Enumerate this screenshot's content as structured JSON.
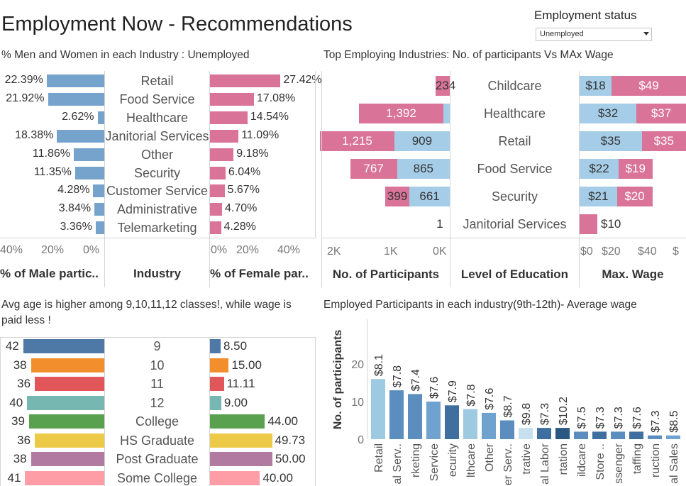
{
  "header": {
    "title": "Employment Now - Recommendations",
    "status_label": "Employment status",
    "status_value": "Unemployed"
  },
  "panel1": {
    "title": "%  Men and Women in each Industry : Unemployed",
    "axis_male": [
      "40%",
      "20%",
      "0%"
    ],
    "axis_female": [
      "0%",
      "20%",
      "40%"
    ],
    "footer_male": "% of Male partic..",
    "footer_industry": "Industry",
    "footer_female": "% of Female par..",
    "colors": {
      "male": "#75a3cc",
      "female": "#d97397"
    }
  },
  "panel2": {
    "title": "Top Employing Industries: No. of participants Vs MAx Wage",
    "axis_participants": [
      "2K",
      "1K",
      "0K"
    ],
    "axis_wage": [
      "$0",
      "$20",
      "$40",
      "$"
    ],
    "footer_participants": "No. of Participants",
    "footer_education": "Level of Education",
    "footer_wage": "Max. Wage"
  },
  "panel3": {
    "title": "Avg age is higher  among 9,10,11,12 classes!, while wage is paid less !"
  },
  "panel4": {
    "title": "Employed Participants in each industry(9th-12th)- Average wage",
    "y_label": "No. of participants",
    "y_ticks": [
      "20",
      "10",
      "0"
    ]
  },
  "chart_data": [
    {
      "type": "bar",
      "title": "%  Men and Women in each Industry : Unemployed",
      "categories": [
        "Retail",
        "Food Service",
        "Healthcare",
        "Janitorial Services",
        "Other",
        "Security",
        "Customer Service",
        "Administrative",
        "Telemarketing"
      ],
      "series": [
        {
          "name": "% of Male partic..",
          "values": [
            22.39,
            21.92,
            2.62,
            18.38,
            11.86,
            11.35,
            4.28,
            3.84,
            3.36
          ],
          "labels": [
            "22.39%",
            "21.92%",
            "2.62%",
            "18.38%",
            "11.86%",
            "11.35%",
            "4.28%",
            "3.84%",
            "3.36%"
          ]
        },
        {
          "name": "% of Female par..",
          "values": [
            27.42,
            17.08,
            14.54,
            11.09,
            9.18,
            6.04,
            5.67,
            4.7,
            4.28
          ],
          "labels": [
            "27.42%",
            "17.08%",
            "14.54%",
            "11.09%",
            "9.18%",
            "6.04%",
            "5.67%",
            "4.70%",
            "4.28%"
          ]
        }
      ],
      "xlim": [
        0,
        40
      ]
    },
    {
      "type": "bar",
      "title": "Top Employing Industries: No. of participants Vs MAx Wage",
      "categories": [
        "Childcare",
        "Healthcare",
        "Retail",
        "Food Service",
        "Security",
        "Janitorial Services"
      ],
      "series": [
        {
          "name": "No. of Participants (dark)",
          "values": [
            234,
            1392,
            1215,
            767,
            399,
            0
          ],
          "labels": [
            "234",
            "1,392",
            "1,215",
            "767",
            "399",
            ""
          ]
        },
        {
          "name": "No. of Participants (light)",
          "values": [
            0,
            100,
            909,
            865,
            661,
            1
          ],
          "labels": [
            "",
            "",
            "909",
            "865",
            "661",
            "1"
          ]
        },
        {
          "name": "Max. Wage (light)",
          "values": [
            18,
            32,
            35,
            22,
            21,
            0
          ],
          "labels": [
            "$18",
            "$32",
            "$35",
            "$22",
            "$21",
            ""
          ]
        },
        {
          "name": "Max. Wage (dark)",
          "values": [
            49,
            37,
            35,
            19,
            20,
            10
          ],
          "labels": [
            "$49",
            "$37",
            "$35",
            "$19",
            "$20",
            "$10"
          ]
        }
      ],
      "xlim_participants": [
        0,
        2000
      ],
      "xlim_wage": [
        0,
        60
      ]
    },
    {
      "type": "bar",
      "title": "Avg age is higher  among 9,10,11,12 classes!, while wage is paid less !",
      "categories": [
        "9",
        "10",
        "11",
        "12",
        "College",
        "HS Graduate",
        "Post Graduate",
        "Some College"
      ],
      "colors": [
        "#4e79a7",
        "#f28e2b",
        "#e15759",
        "#76b7b2",
        "#59a14f",
        "#edc948",
        "#b07aa1",
        "#ff9da7"
      ],
      "series": [
        {
          "name": "Avg age",
          "values": [
            42,
            38,
            36,
            40,
            39,
            36,
            38,
            41
          ],
          "labels": [
            "42",
            "38",
            "36",
            "40",
            "39",
            "36",
            "38",
            "41"
          ]
        },
        {
          "name": "Avg wage",
          "values": [
            8.5,
            15.0,
            11.11,
            9.0,
            44.0,
            49.73,
            50.0,
            40.0
          ],
          "labels": [
            "8.50",
            "15.00",
            "11.11",
            "9.00",
            "44.00",
            "49.73",
            "50.00",
            "40.00"
          ]
        }
      ]
    },
    {
      "type": "bar",
      "title": "Employed Participants in each industry(9th-12th)- Average wage",
      "ylabel": "No. of participants",
      "ylim": [
        0,
        24
      ],
      "categories": [
        "Retail",
        "al Serv..",
        "rketing",
        "Service",
        "ecurity",
        "lthcare",
        "Other",
        "er Serv..",
        "trative",
        "al Labor",
        "rtation",
        "ildcare",
        "Store ..",
        "ssenger",
        "taffing",
        "ruction",
        "al Sales"
      ],
      "values": [
        16,
        13,
        12,
        10,
        9,
        8,
        7,
        5,
        3,
        3,
        3,
        2,
        2,
        2,
        2,
        1,
        1
      ],
      "wage_labels": [
        "$8.1",
        "$7.8",
        "$7.4",
        "$7.6",
        "$7.9",
        "$7.8",
        "$7.6",
        "$8.7",
        "$9.8",
        "$7.3",
        "$10.2",
        "$7.5",
        "$7.3",
        "$7.3",
        "$7.6",
        "$7.3",
        "$8.5"
      ],
      "colors": [
        "#9ecae1",
        "#5b8dbf",
        "#5b8dbf",
        "#6fa2cf",
        "#3f6f9f",
        "#9ecae1",
        "#6fa2cf",
        "#5b8dbf",
        "#c6e0f0",
        "#3f6f9f",
        "#2b5783",
        "#5b8dbf",
        "#3f6f9f",
        "#5b8dbf",
        "#3f6f9f",
        "#5b8dbf",
        "#6fa2cf"
      ]
    }
  ]
}
